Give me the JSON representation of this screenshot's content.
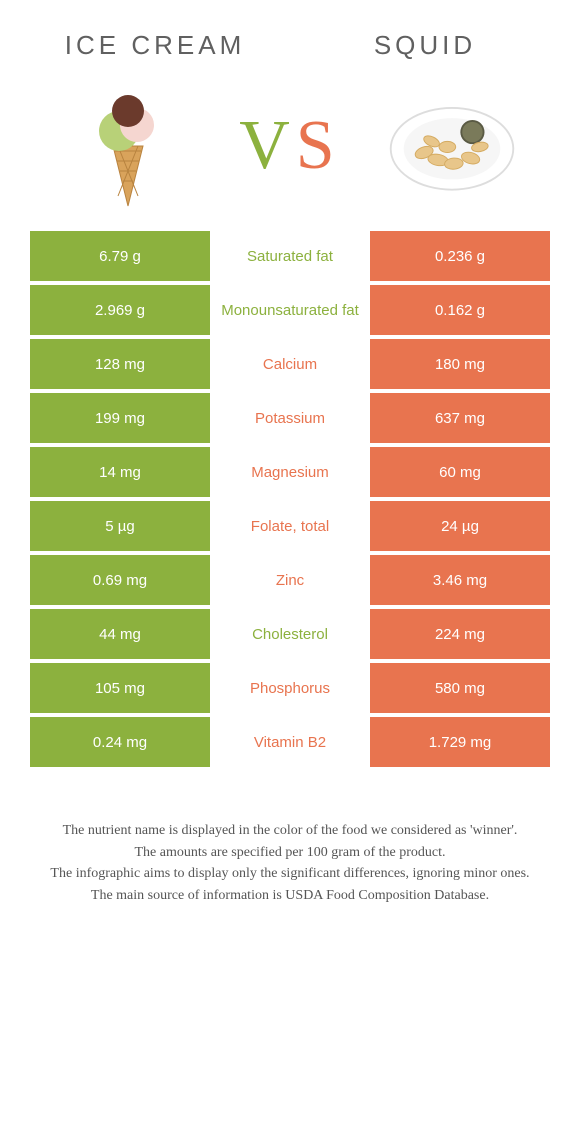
{
  "colors": {
    "green": "#8cb13e",
    "orange": "#e8744f",
    "text_muted": "#606060",
    "text_body": "#555555",
    "white": "#ffffff"
  },
  "header": {
    "left": "ICE CREAM",
    "right": "SQUID"
  },
  "vs": {
    "v": "V",
    "s": "S"
  },
  "table": {
    "rows": [
      {
        "left": "6.79 g",
        "label": "Saturated fat",
        "right": "0.236 g",
        "winner": "left"
      },
      {
        "left": "2.969 g",
        "label": "Monounsaturated fat",
        "right": "0.162 g",
        "winner": "left"
      },
      {
        "left": "128 mg",
        "label": "Calcium",
        "right": "180 mg",
        "winner": "right"
      },
      {
        "left": "199 mg",
        "label": "Potassium",
        "right": "637 mg",
        "winner": "right"
      },
      {
        "left": "14 mg",
        "label": "Magnesium",
        "right": "60 mg",
        "winner": "right"
      },
      {
        "left": "5 µg",
        "label": "Folate, total",
        "right": "24 µg",
        "winner": "right"
      },
      {
        "left": "0.69 mg",
        "label": "Zinc",
        "right": "3.46 mg",
        "winner": "right"
      },
      {
        "left": "44 mg",
        "label": "Cholesterol",
        "right": "224 mg",
        "winner": "left"
      },
      {
        "left": "105 mg",
        "label": "Phosphorus",
        "right": "580 mg",
        "winner": "right"
      },
      {
        "left": "0.24 mg",
        "label": "Vitamin B2",
        "right": "1.729 mg",
        "winner": "right"
      }
    ]
  },
  "footnotes": [
    "The nutrient name is displayed in the color of the food we considered as 'winner'.",
    "The amounts are specified per 100 gram of the product.",
    "The infographic aims to display only the significant differences, ignoring minor ones.",
    "The main source of information is USDA Food Composition Database."
  ]
}
